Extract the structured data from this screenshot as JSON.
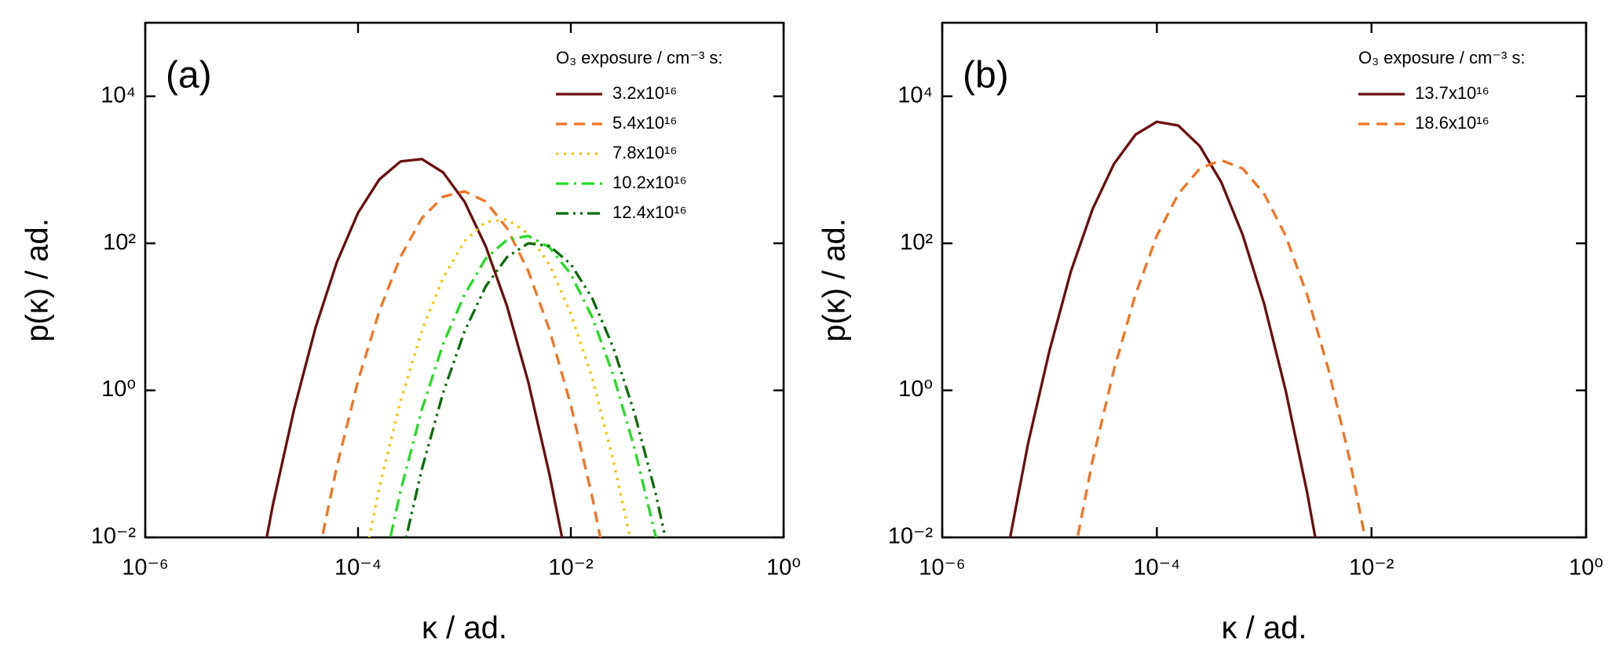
{
  "chart_data": [
    {
      "type": "line",
      "panel_label": "(a)",
      "xlabel": "κ / ad.",
      "ylabel": "p(κ) / ad.",
      "xscale": "log",
      "yscale": "log",
      "xlim": [
        1e-06,
        1
      ],
      "ylim": [
        0.01,
        100000
      ],
      "xticks": [
        {
          "value": 1e-06,
          "label": "10⁻⁶"
        },
        {
          "value": 0.0001,
          "label": "10⁻⁴"
        },
        {
          "value": 0.01,
          "label": "10⁻²"
        },
        {
          "value": 1,
          "label": "10⁰"
        }
      ],
      "yticks": [
        {
          "value": 0.01,
          "label": "10⁻²"
        },
        {
          "value": 1,
          "label": "10⁰"
        },
        {
          "value": 100,
          "label": "10²"
        },
        {
          "value": 10000,
          "label": "10⁴"
        }
      ],
      "legend_title": "O₃ exposure / cm⁻³ s:",
      "legend": "upper right",
      "x": [
        1e-05,
        1.585e-05,
        2.512e-05,
        3.981e-05,
        6.31e-05,
        0.0001,
        0.0001585,
        0.0002512,
        0.0003981,
        0.000631,
        0.001,
        0.001585,
        0.002512,
        0.003981,
        0.00631,
        0.01,
        0.01585,
        0.02512,
        0.03981,
        0.0631,
        0.1
      ],
      "series": [
        {
          "name": "3.2x10¹⁶",
          "color": "#6b0d0d",
          "dash": "solid",
          "values": [
            0.00081,
            0.028,
            0.56,
            7.1,
            55,
            260,
            740,
            1300,
            1400,
            920,
            370,
            91,
            14,
            1.3,
            0.071,
            0.0025,
            null,
            null,
            null,
            null,
            null
          ]
        },
        {
          "name": "5.4x10¹⁶",
          "color": "#f27322",
          "dash": "dashed",
          "values": [
            null,
            null,
            null,
            0.0037,
            0.091,
            1.35,
            12,
            66,
            220,
            430,
            510,
            370,
            160,
            42,
            6.6,
            0.63,
            0.036,
            0.0013,
            null,
            null,
            null
          ]
        },
        {
          "name": "7.8x10¹⁶",
          "color": "#f5c200",
          "dash": "dotted",
          "values": [
            null,
            null,
            null,
            null,
            null,
            0.0018,
            0.048,
            0.72,
            6.5,
            34,
            107,
            195,
            212,
            135,
            51,
            11,
            1.5,
            0.11,
            0.0051,
            null,
            null
          ]
        },
        {
          "name": "10.2x10¹⁶",
          "color": "#22dd22",
          "dash": "dashdot",
          "values": [
            null,
            null,
            null,
            null,
            null,
            null,
            0.0021,
            0.043,
            0.55,
            4.3,
            20,
            62,
            112,
            126,
            88,
            38,
            10,
            1.6,
            0.16,
            0.01,
            0.00038
          ]
        },
        {
          "name": "12.4x10¹⁶",
          "color": "#0b6b0b",
          "dash": "dashdotdot",
          "values": [
            null,
            null,
            null,
            null,
            null,
            null,
            null,
            0.0047,
            0.085,
            0.93,
            6.3,
            26,
            65,
            100,
            92,
            52,
            18,
            3.8,
            0.48,
            0.038,
            0.0018
          ]
        }
      ]
    },
    {
      "type": "line",
      "panel_label": "(b)",
      "xlabel": "κ / ad.",
      "ylabel": "p(κ) / ad.",
      "xscale": "log",
      "yscale": "log",
      "xlim": [
        1e-06,
        1
      ],
      "ylim": [
        0.01,
        100000
      ],
      "xticks": [
        {
          "value": 1e-06,
          "label": "10⁻⁶"
        },
        {
          "value": 0.0001,
          "label": "10⁻⁴"
        },
        {
          "value": 0.01,
          "label": "10⁻²"
        },
        {
          "value": 1,
          "label": "10⁰"
        }
      ],
      "yticks": [
        {
          "value": 0.01,
          "label": "10⁻²"
        },
        {
          "value": 1,
          "label": "10⁰"
        },
        {
          "value": 100,
          "label": "10²"
        },
        {
          "value": 10000,
          "label": "10⁴"
        }
      ],
      "legend_title": "O₃ exposure / cm⁻³ s:",
      "legend": "upper right",
      "x": [
        2.512e-06,
        3.981e-06,
        6.31e-06,
        1e-05,
        1.585e-05,
        2.512e-05,
        3.981e-05,
        6.31e-05,
        0.0001,
        0.0001585,
        0.0002512,
        0.0003981,
        0.000631,
        0.001,
        0.001585,
        0.002512,
        0.003981,
        0.00631,
        0.01,
        0.01585,
        0.02512
      ],
      "series": [
        {
          "name": "13.7x10¹⁶",
          "color": "#6b0d0d",
          "dash": "solid",
          "values": [
            null,
            0.0056,
            0.19,
            3.5,
            42,
            290,
            1200,
            3000,
            4500,
            4000,
            2100,
            680,
            130,
            15,
            1.0,
            0.041,
            0.001,
            null,
            null,
            null,
            null
          ]
        },
        {
          "name": "18.6x10¹⁶",
          "color": "#f27322",
          "dash": "dashed",
          "values": [
            null,
            null,
            null,
            null,
            0.0035,
            0.11,
            1.9,
            20,
            127,
            470,
            1040,
            1350,
            1040,
            470,
            127,
            20,
            1.9,
            0.11,
            0.0035,
            null,
            null
          ]
        }
      ]
    }
  ]
}
